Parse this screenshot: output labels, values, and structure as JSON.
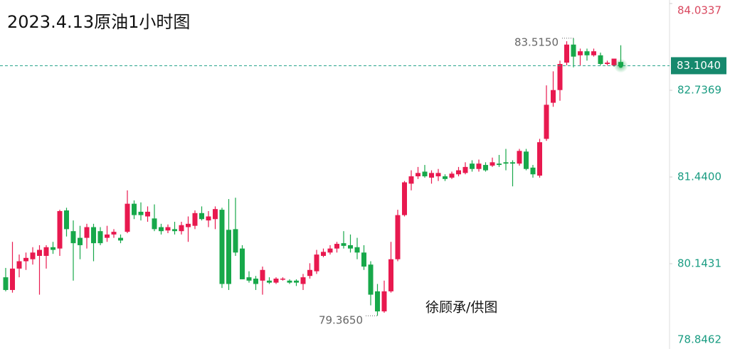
{
  "chart_data": {
    "type": "candlestick",
    "title": "2023.4.13原油1小时图",
    "watermark": "徐顾承/供图",
    "up_color": "#e8194f",
    "down_color": "#17a84a",
    "ylim": [
      78.8462,
      84.0337
    ],
    "yticks": [
      84.0337,
      {
        "value": 82.7369,
        "label": "82.7369"
      },
      {
        "value": 81.44,
        "label": "81.4400"
      },
      80.1431,
      78.8462
    ],
    "last_price": {
      "value": 83.104,
      "label": "83.1040"
    },
    "high_label": {
      "value": 83.515,
      "label": "83.5150"
    },
    "low_label": {
      "value": 79.365,
      "label": "79.3650"
    },
    "ohlc": [
      [
        79.94,
        80.08,
        79.73,
        79.75
      ],
      [
        79.75,
        80.47,
        79.71,
        80.07
      ],
      [
        80.07,
        80.28,
        79.94,
        80.18
      ],
      [
        80.18,
        80.31,
        80.05,
        80.23
      ],
      [
        80.21,
        80.39,
        80.13,
        80.31
      ],
      [
        80.26,
        80.42,
        79.68,
        80.35
      ],
      [
        80.26,
        80.42,
        80.07,
        80.39
      ],
      [
        80.39,
        80.47,
        80.29,
        80.35
      ],
      [
        80.37,
        80.95,
        80.26,
        80.93
      ],
      [
        80.94,
        80.98,
        80.55,
        80.66
      ],
      [
        80.63,
        80.79,
        79.89,
        80.45
      ],
      [
        80.53,
        80.71,
        80.21,
        80.42
      ],
      [
        80.53,
        80.74,
        80.37,
        80.69
      ],
      [
        80.69,
        80.74,
        80.18,
        80.45
      ],
      [
        80.63,
        80.69,
        80.42,
        80.45
      ],
      [
        80.53,
        80.71,
        80.47,
        80.58
      ],
      [
        80.58,
        80.66,
        80.53,
        80.62
      ],
      [
        80.53,
        80.58,
        80.45,
        80.49
      ],
      [
        80.62,
        81.24,
        80.6,
        81.04
      ],
      [
        81.04,
        81.09,
        80.81,
        80.87
      ],
      [
        80.92,
        81.06,
        80.79,
        80.87
      ],
      [
        80.85,
        81.0,
        80.77,
        80.92
      ],
      [
        80.82,
        81.03,
        80.63,
        80.66
      ],
      [
        80.69,
        80.74,
        80.58,
        80.63
      ],
      [
        80.64,
        80.73,
        80.6,
        80.69
      ],
      [
        80.66,
        80.77,
        80.58,
        80.63
      ],
      [
        80.63,
        80.77,
        80.58,
        80.72
      ],
      [
        80.69,
        80.85,
        80.47,
        80.74
      ],
      [
        80.71,
        80.94,
        80.66,
        80.9
      ],
      [
        80.9,
        81.0,
        80.79,
        80.81
      ],
      [
        80.79,
        80.93,
        80.69,
        80.85
      ],
      [
        80.81,
        81.0,
        80.66,
        80.96
      ],
      [
        80.95,
        80.98,
        79.78,
        79.84
      ],
      [
        80.65,
        81.11,
        79.75,
        79.84
      ],
      [
        80.66,
        81.13,
        80.26,
        80.31
      ],
      [
        80.37,
        80.42,
        79.91,
        79.91
      ],
      [
        79.94,
        80.03,
        79.86,
        79.89
      ],
      [
        79.92,
        79.96,
        79.75,
        79.84
      ],
      [
        79.89,
        80.1,
        79.68,
        80.05
      ],
      [
        79.89,
        79.94,
        79.84,
        79.86
      ],
      [
        79.86,
        79.94,
        79.84,
        79.92
      ],
      [
        79.91,
        79.94,
        79.89,
        79.92
      ],
      [
        79.89,
        79.91,
        79.84,
        79.86
      ],
      [
        79.89,
        79.91,
        79.81,
        79.86
      ],
      [
        79.84,
        79.99,
        79.75,
        79.94
      ],
      [
        79.96,
        80.15,
        79.92,
        80.05
      ],
      [
        80.03,
        80.35,
        79.99,
        80.28
      ],
      [
        80.26,
        80.37,
        80.24,
        80.32
      ],
      [
        80.31,
        80.42,
        80.28,
        80.37
      ],
      [
        80.37,
        80.47,
        80.31,
        80.44
      ],
      [
        80.45,
        80.63,
        80.37,
        80.41
      ],
      [
        80.42,
        80.58,
        80.31,
        80.37
      ],
      [
        80.39,
        80.53,
        80.21,
        80.31
      ],
      [
        80.31,
        80.42,
        80.05,
        80.1
      ],
      [
        80.13,
        80.18,
        79.52,
        79.68
      ],
      [
        79.73,
        79.84,
        79.365,
        79.43
      ],
      [
        79.43,
        79.89,
        79.41,
        79.73
      ],
      [
        79.73,
        80.47,
        79.71,
        80.21
      ],
      [
        80.21,
        80.95,
        80.18,
        80.87
      ],
      [
        80.87,
        81.38,
        80.85,
        81.36
      ],
      [
        81.34,
        81.54,
        81.24,
        81.45
      ],
      [
        81.45,
        81.59,
        81.41,
        81.5
      ],
      [
        81.52,
        81.62,
        81.43,
        81.45
      ],
      [
        81.43,
        81.54,
        81.34,
        81.5
      ],
      [
        81.45,
        81.56,
        81.38,
        81.5
      ],
      [
        81.45,
        81.48,
        81.38,
        81.41
      ],
      [
        81.43,
        81.52,
        81.41,
        81.49
      ],
      [
        81.48,
        81.59,
        81.45,
        81.54
      ],
      [
        81.5,
        81.66,
        81.48,
        81.59
      ],
      [
        81.64,
        81.69,
        81.52,
        81.56
      ],
      [
        81.56,
        81.7,
        81.52,
        81.64
      ],
      [
        81.62,
        81.66,
        81.52,
        81.54
      ],
      [
        81.61,
        81.73,
        81.59,
        81.66
      ],
      [
        81.64,
        81.77,
        81.59,
        81.62
      ],
      [
        81.66,
        81.86,
        81.54,
        81.64
      ],
      [
        81.66,
        81.69,
        81.3,
        81.64
      ],
      [
        81.64,
        81.86,
        81.61,
        81.83
      ],
      [
        81.82,
        81.86,
        81.54,
        81.56
      ],
      [
        81.58,
        81.62,
        81.43,
        81.48
      ],
      [
        81.46,
        82.01,
        81.43,
        81.96
      ],
      [
        82.01,
        82.81,
        81.98,
        82.52
      ],
      [
        82.55,
        83.02,
        82.49,
        82.74
      ],
      [
        82.74,
        83.18,
        82.58,
        83.13
      ],
      [
        83.15,
        83.47,
        83.11,
        83.42
      ],
      [
        83.42,
        83.515,
        83.08,
        83.24
      ],
      [
        83.26,
        83.36,
        83.11,
        83.32
      ],
      [
        83.32,
        83.36,
        83.18,
        83.26
      ],
      [
        83.26,
        83.36,
        83.24,
        83.32
      ],
      [
        83.26,
        83.3,
        83.11,
        83.13
      ],
      [
        83.13,
        83.18,
        83.11,
        83.15
      ],
      [
        83.11,
        83.21,
        83.09,
        83.21
      ],
      [
        83.16,
        83.41,
        83.11,
        83.104
      ]
    ]
  }
}
